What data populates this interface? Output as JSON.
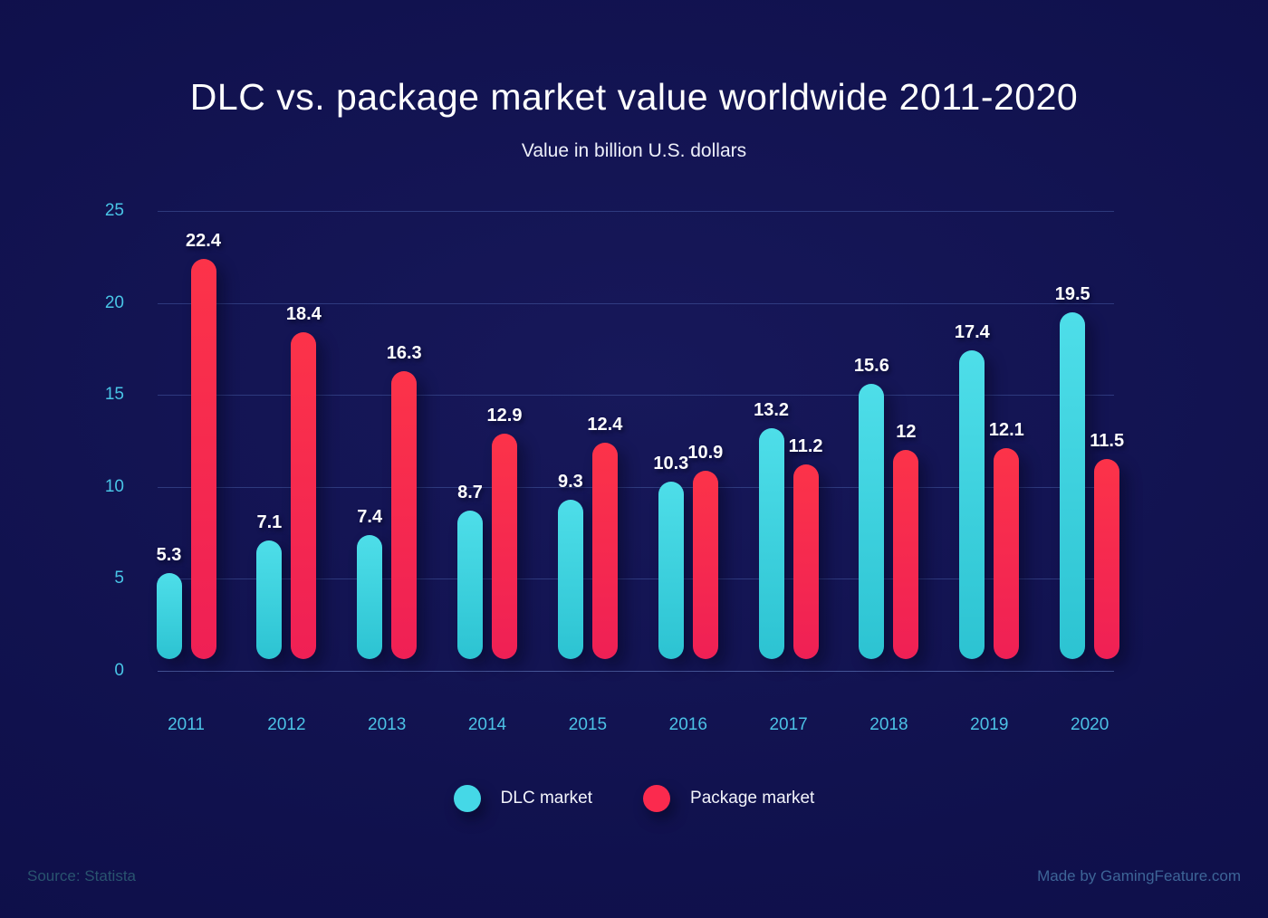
{
  "header": {
    "title": "DLC vs. package market value worldwide 2011-2020",
    "subtitle": "Value in billion U.S. dollars"
  },
  "legend": [
    {
      "label": "DLC market",
      "color": "#45d8e7"
    },
    {
      "label": "Package market",
      "color": "#fb2a4e"
    }
  ],
  "footer": {
    "source": "Source: Statista",
    "credit": "Made by GamingFeature.com"
  },
  "theme": {
    "background": "#10114d",
    "background_edge": "#0c0d46",
    "title_color": "#ffffff",
    "axis_text_color": "#49c5e6",
    "gridline_color": "#31427a",
    "value_label_color": "#ffffff",
    "source_text_color": "#29546f",
    "credit_text_color": "#3d6597"
  },
  "chart_data": {
    "type": "bar",
    "title": "DLC vs. package market value worldwide 2011-2020",
    "subtitle": "Value in billion U.S. dollars",
    "categories": [
      "2011",
      "2012",
      "2013",
      "2014",
      "2015",
      "2016",
      "2017",
      "2018",
      "2019",
      "2020"
    ],
    "series": [
      {
        "name": "DLC market",
        "color_top": "#4edee9",
        "color_bottom": "#2cc3d2",
        "values": [
          5.3,
          7.1,
          7.4,
          8.7,
          9.3,
          10.3,
          13.2,
          15.6,
          17.4,
          19.5
        ]
      },
      {
        "name": "Package market",
        "color_top": "#fc3349",
        "color_bottom": "#ef2055",
        "values": [
          22.4,
          18.4,
          16.3,
          12.9,
          12.4,
          10.9,
          11.2,
          12,
          12.1,
          11.5
        ]
      }
    ],
    "xlabel": "",
    "ylabel": "",
    "ylim": [
      0,
      25
    ],
    "y_ticks": [
      0,
      5,
      10,
      15,
      20,
      25
    ],
    "grid": true,
    "data_labels": true,
    "legend_position": "bottom"
  }
}
